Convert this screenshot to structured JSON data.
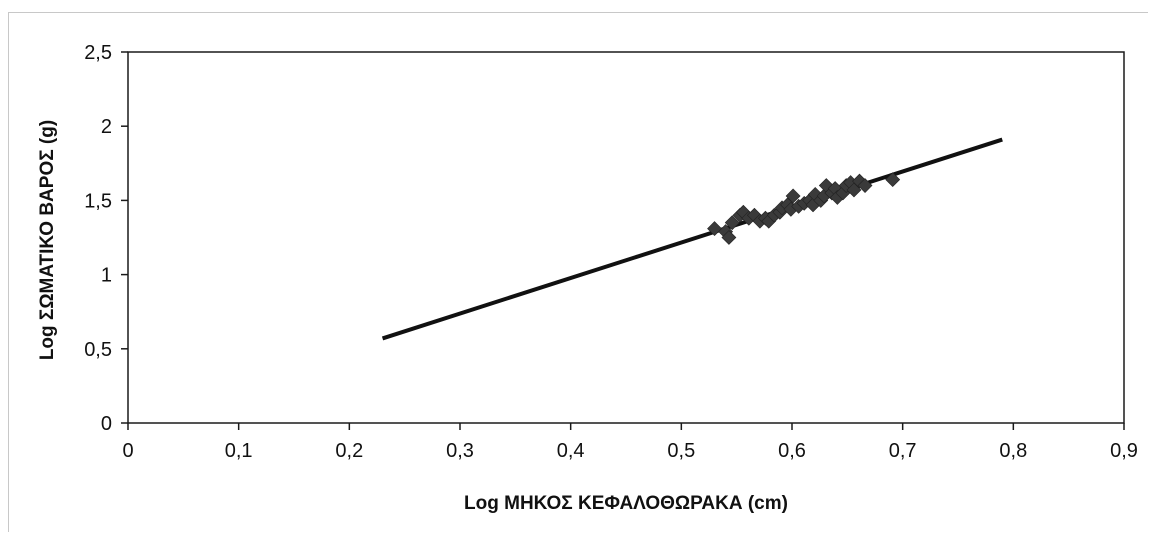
{
  "chart_data": {
    "type": "scatter",
    "title": "",
    "xlabel": "Log ΜΗΚΟΣ ΚΕΦΑΛΟΘΩΡΑΚΑ (cm)",
    "ylabel": "Log ΣΩΜΑΤΙΚΟ ΒΑΡΟΣ (g)",
    "xlim": [
      0,
      0.9
    ],
    "ylim": [
      0,
      2.5
    ],
    "x_ticks": [
      0,
      0.1,
      0.2,
      0.3,
      0.4,
      0.5,
      0.6,
      0.7,
      0.8,
      0.9
    ],
    "x_tick_labels": [
      "0",
      "0,1",
      "0,2",
      "0,3",
      "0,4",
      "0,5",
      "0,6",
      "0,7",
      "0,8",
      "0,9"
    ],
    "y_ticks": [
      0,
      0.5,
      1,
      1.5,
      2,
      2.5
    ],
    "y_tick_labels": [
      "0",
      "0,5",
      "1",
      "1,5",
      "2",
      "2,5"
    ],
    "grid": false,
    "legend": "none",
    "marker_color": "#3a3a3a",
    "line_color": "#111111",
    "points": [
      {
        "x": 0.53,
        "y": 1.31
      },
      {
        "x": 0.54,
        "y": 1.29
      },
      {
        "x": 0.543,
        "y": 1.25
      },
      {
        "x": 0.546,
        "y": 1.35
      },
      {
        "x": 0.553,
        "y": 1.4
      },
      {
        "x": 0.556,
        "y": 1.42
      },
      {
        "x": 0.561,
        "y": 1.38
      },
      {
        "x": 0.566,
        "y": 1.4
      },
      {
        "x": 0.571,
        "y": 1.36
      },
      {
        "x": 0.576,
        "y": 1.38
      },
      {
        "x": 0.579,
        "y": 1.36
      },
      {
        "x": 0.584,
        "y": 1.4
      },
      {
        "x": 0.589,
        "y": 1.42
      },
      {
        "x": 0.591,
        "y": 1.45
      },
      {
        "x": 0.596,
        "y": 1.47
      },
      {
        "x": 0.599,
        "y": 1.44
      },
      {
        "x": 0.601,
        "y": 1.53
      },
      {
        "x": 0.606,
        "y": 1.46
      },
      {
        "x": 0.611,
        "y": 1.48
      },
      {
        "x": 0.616,
        "y": 1.5
      },
      {
        "x": 0.619,
        "y": 1.47
      },
      {
        "x": 0.621,
        "y": 1.54
      },
      {
        "x": 0.626,
        "y": 1.5
      },
      {
        "x": 0.629,
        "y": 1.53
      },
      {
        "x": 0.631,
        "y": 1.6
      },
      {
        "x": 0.636,
        "y": 1.55
      },
      {
        "x": 0.639,
        "y": 1.58
      },
      {
        "x": 0.641,
        "y": 1.52
      },
      {
        "x": 0.646,
        "y": 1.55
      },
      {
        "x": 0.649,
        "y": 1.6
      },
      {
        "x": 0.653,
        "y": 1.62
      },
      {
        "x": 0.656,
        "y": 1.57
      },
      {
        "x": 0.661,
        "y": 1.63
      },
      {
        "x": 0.666,
        "y": 1.6
      },
      {
        "x": 0.691,
        "y": 1.64
      }
    ],
    "trendline": {
      "x": [
        0.23,
        0.79
      ],
      "y": [
        0.57,
        1.91
      ]
    }
  }
}
